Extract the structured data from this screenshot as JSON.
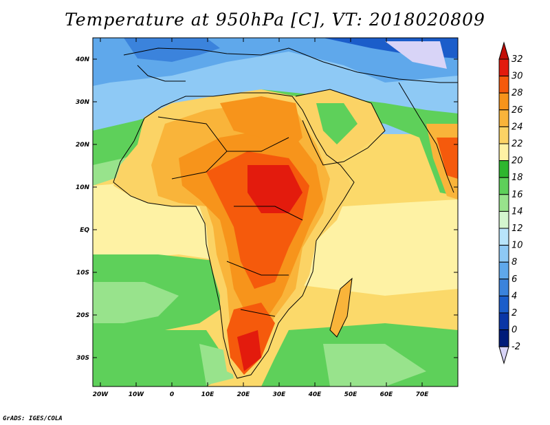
{
  "title": "Temperature at 950hPa [C], VT: 2018020809",
  "credit": "GrADS: IGES/COLA",
  "map": {
    "lon_labels": [
      "20W",
      "10W",
      "0",
      "10E",
      "20E",
      "30E",
      "40E",
      "50E",
      "60E",
      "70E"
    ],
    "lat_labels": [
      "40N",
      "30N",
      "20N",
      "10N",
      "EQ",
      "10S",
      "20S",
      "30S"
    ],
    "lon_range": [
      -22,
      80
    ],
    "lat_range": [
      -37,
      45
    ]
  },
  "colorbar": {
    "labels": [
      "32",
      "30",
      "28",
      "26",
      "24",
      "22",
      "20",
      "18",
      "16",
      "14",
      "12",
      "10",
      "8",
      "6",
      "4",
      "2",
      "0",
      "-2"
    ],
    "colors": [
      "#e31b0d",
      "#f55a0c",
      "#f7941b",
      "#f9b43a",
      "#fbd365",
      "#fef2a4",
      "#2eb62e",
      "#5ed05a",
      "#98e38c",
      "#d4f6cf",
      "#b8e4fb",
      "#8ec9f5",
      "#5fa8eb",
      "#3b83dc",
      "#1b5dca",
      "#0a36a6",
      "#001b7a"
    ],
    "top_color": "#c30f08",
    "bottom_color": "#d8d4f7"
  }
}
